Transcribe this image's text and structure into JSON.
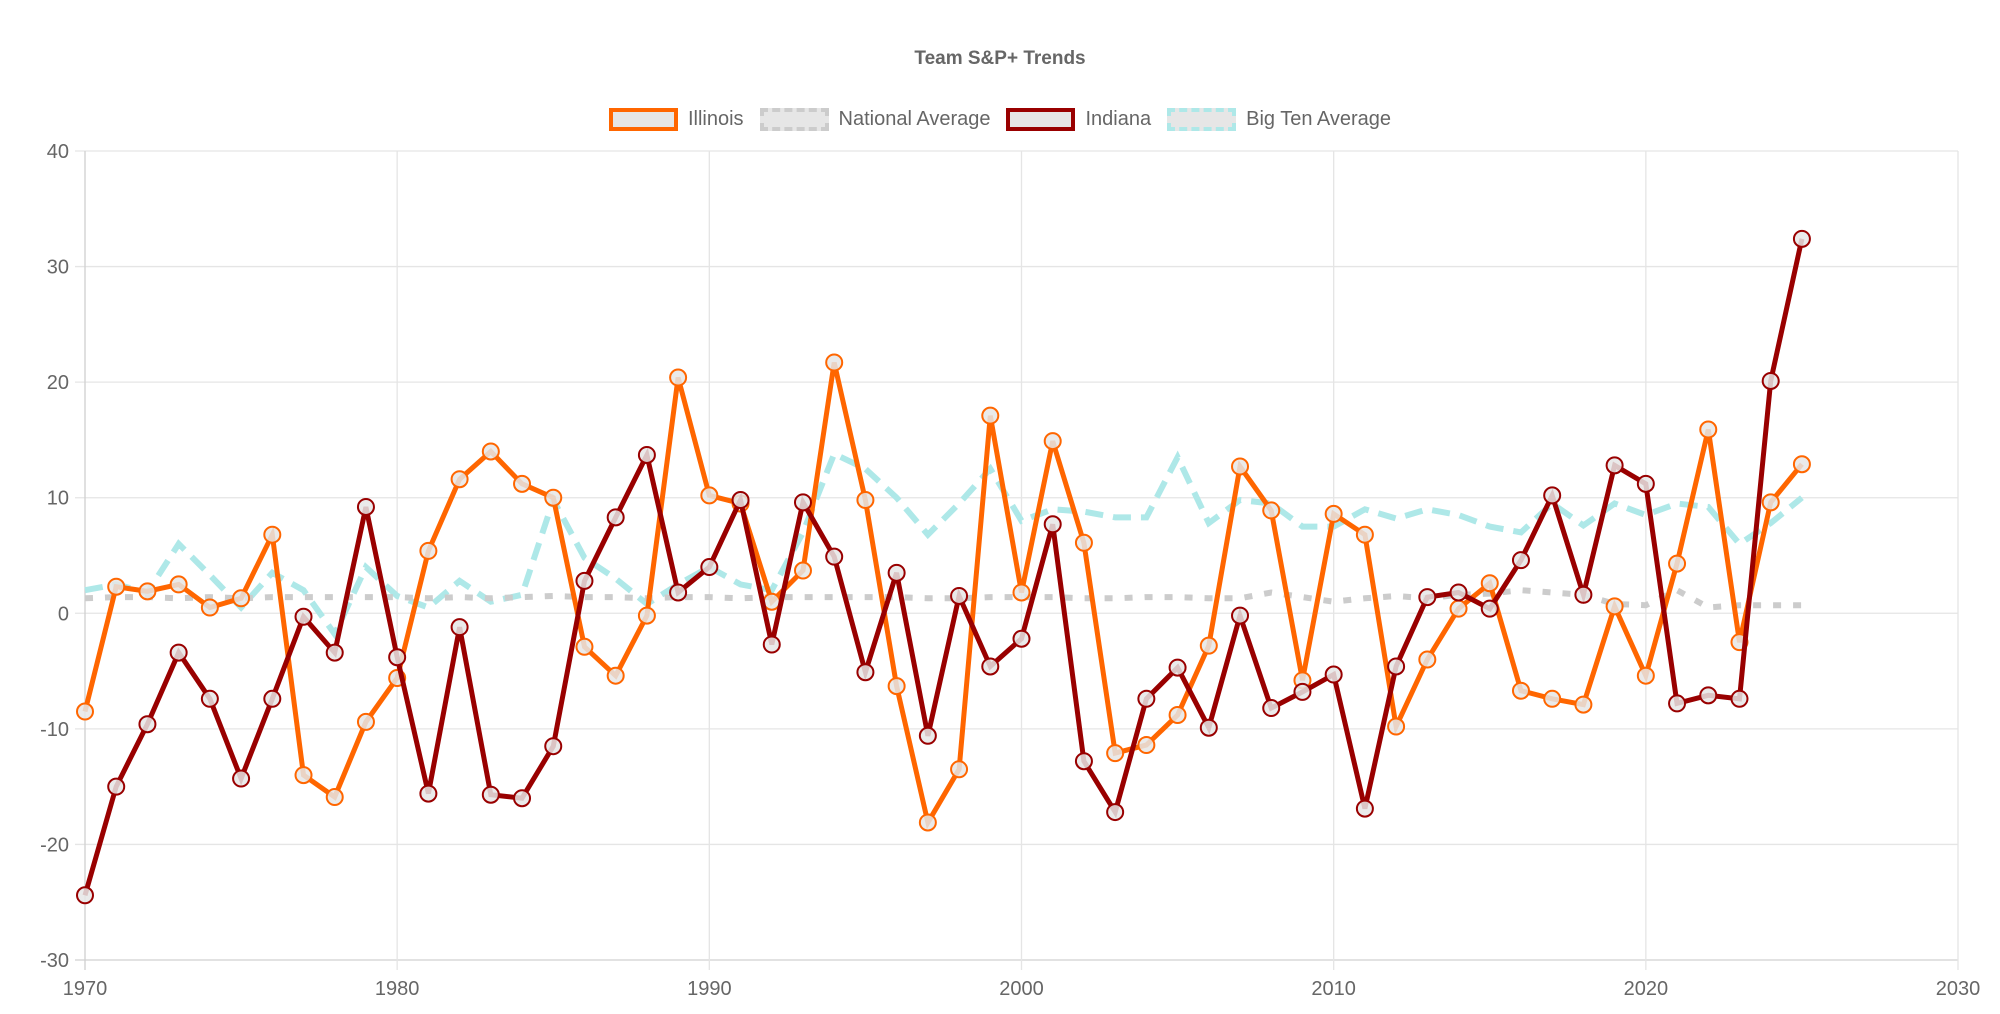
{
  "chart_data": {
    "type": "line",
    "title": "Team S&P+ Trends",
    "xlabel": "",
    "ylabel": "",
    "xlim": [
      1970,
      2030
    ],
    "ylim": [
      -30,
      40
    ],
    "x_ticks": [
      "1970",
      "1980",
      "1990",
      "2000",
      "2010",
      "2020",
      "2030"
    ],
    "y_ticks": [
      "40",
      "30",
      "20",
      "10",
      "0",
      "-10",
      "-20",
      "-30"
    ],
    "grid": true,
    "legend_position": "top-center",
    "x": [
      1970,
      1971,
      1972,
      1973,
      1974,
      1975,
      1976,
      1977,
      1978,
      1979,
      1980,
      1981,
      1982,
      1983,
      1984,
      1985,
      1986,
      1987,
      1988,
      1989,
      1990,
      1991,
      1992,
      1993,
      1994,
      1995,
      1996,
      1997,
      1998,
      1999,
      2000,
      2001,
      2002,
      2003,
      2004,
      2005,
      2006,
      2007,
      2008,
      2009,
      2010,
      2011,
      2012,
      2013,
      2014,
      2015,
      2016,
      2017,
      2018,
      2019,
      2020,
      2021,
      2022,
      2023,
      2024,
      2025
    ],
    "series": [
      {
        "name": "Illinois",
        "color": "#ff6600",
        "dashed": false,
        "points": true,
        "values": [
          -8.5,
          2.3,
          1.9,
          2.5,
          0.5,
          1.3,
          6.8,
          -14.0,
          -15.9,
          -9.4,
          -5.6,
          5.4,
          11.6,
          14.0,
          11.2,
          10.0,
          -2.9,
          -5.4,
          -0.2,
          20.4,
          10.2,
          9.5,
          1.0,
          3.7,
          21.7,
          9.8,
          -6.3,
          -18.1,
          -13.5,
          17.1,
          1.8,
          14.9,
          6.1,
          -12.1,
          -11.4,
          -8.8,
          -2.8,
          12.7,
          8.9,
          -5.8,
          8.6,
          6.8,
          -9.8,
          -4.0,
          0.4,
          2.6,
          -6.7,
          -7.4,
          -7.9,
          0.6,
          -5.4,
          4.3,
          15.9,
          -2.5,
          9.6,
          12.9
        ]
      },
      {
        "name": "National Average",
        "color": "#cccccc",
        "dashed": true,
        "points": false,
        "values": [
          1.3,
          1.4,
          1.4,
          1.3,
          1.4,
          1.3,
          1.4,
          1.4,
          1.4,
          1.4,
          1.4,
          1.3,
          1.4,
          1.3,
          1.4,
          1.5,
          1.4,
          1.4,
          1.3,
          1.4,
          1.4,
          1.3,
          1.4,
          1.4,
          1.4,
          1.4,
          1.4,
          1.3,
          1.3,
          1.4,
          1.4,
          1.4,
          1.3,
          1.3,
          1.4,
          1.4,
          1.3,
          1.3,
          1.8,
          1.4,
          1.0,
          1.3,
          1.5,
          1.3,
          1.6,
          1.7,
          2.0,
          1.8,
          1.6,
          0.8,
          0.7,
          2.0,
          0.5,
          0.7,
          0.7,
          0.7
        ]
      },
      {
        "name": "Indiana",
        "color": "#990000",
        "dashed": false,
        "points": true,
        "values": [
          -24.4,
          -15.0,
          -9.6,
          -3.4,
          -7.4,
          -14.3,
          -7.4,
          -0.3,
          -3.4,
          9.2,
          -3.8,
          -15.6,
          -1.2,
          -15.7,
          -16.0,
          -11.5,
          2.8,
          8.3,
          13.7,
          1.8,
          4.0,
          9.8,
          -2.7,
          9.6,
          4.9,
          -5.1,
          3.5,
          -10.6,
          1.5,
          -4.6,
          -2.2,
          7.7,
          -12.8,
          -17.2,
          -7.4,
          -4.7,
          -9.9,
          -0.2,
          -8.2,
          -6.8,
          -5.3,
          -16.9,
          -4.6,
          1.4,
          1.8,
          0.4,
          4.6,
          10.2,
          1.6,
          12.8,
          11.2,
          -7.8,
          -7.1,
          -7.4,
          20.1,
          32.4
        ]
      },
      {
        "name": "Big Ten Average",
        "color": "#aee8e8",
        "dashed": true,
        "points": false,
        "values": [
          2.0,
          2.5,
          1.8,
          6.0,
          3.3,
          0.5,
          3.5,
          2.0,
          -1.8,
          4.0,
          1.5,
          0.5,
          2.8,
          1.0,
          1.6,
          9.8,
          4.8,
          3.0,
          0.8,
          2.5,
          4.0,
          2.5,
          2.0,
          7.0,
          13.8,
          12.5,
          10.0,
          6.8,
          9.5,
          12.5,
          8.0,
          9.0,
          8.8,
          8.3,
          8.3,
          13.5,
          7.8,
          9.8,
          9.5,
          7.5,
          7.5,
          9.0,
          8.2,
          9.0,
          8.5,
          7.5,
          7.0,
          9.5,
          7.6,
          9.5,
          8.5,
          9.5,
          9.2,
          6.0,
          7.8,
          10.0
        ]
      }
    ]
  }
}
